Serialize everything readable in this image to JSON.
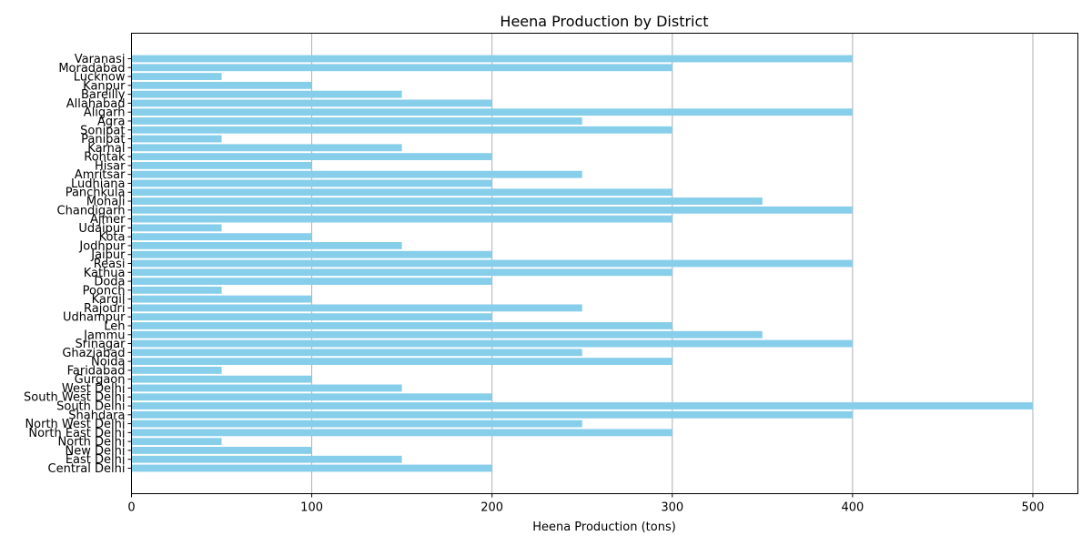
{
  "chart_data": {
    "type": "bar",
    "orientation": "horizontal",
    "title": "Heena Production by District",
    "xlabel": "Heena Production (tons)",
    "ylabel": "",
    "xlim": [
      0,
      525
    ],
    "xticks": [
      0,
      100,
      200,
      300,
      400,
      500
    ],
    "grid": "x",
    "bar_color": "#87ceeb",
    "categories": [
      "Central Delhi",
      "East Delhi",
      "New Delhi",
      "North Delhi",
      "North East Delhi",
      "North West Delhi",
      "Shahdara",
      "South Delhi",
      "South West Delhi",
      "West Delhi",
      "Gurgaon",
      "Faridabad",
      "Noida",
      "Ghaziabad",
      "Srinagar",
      "Jammu",
      "Leh",
      "Udhampur",
      "Rajouri",
      "Kargil",
      "Poonch",
      "Doda",
      "Kathua",
      "Reasi",
      "Jaipur",
      "Jodhpur",
      "Kota",
      "Udaipur",
      "Ajmer",
      "Chandigarh",
      "Mohali",
      "Panchkula",
      "Ludhiana",
      "Amritsar",
      "Hisar",
      "Rohtak",
      "Karnal",
      "Panipat",
      "Sonipat",
      "Agra",
      "Aligarh",
      "Allahabad",
      "Bareilly",
      "Kanpur",
      "Lucknow",
      "Moradabad",
      "Varanasi"
    ],
    "values": [
      200,
      150,
      100,
      50,
      300,
      250,
      400,
      500,
      200,
      150,
      100,
      50,
      300,
      250,
      400,
      350,
      300,
      200,
      250,
      100,
      50,
      200,
      300,
      400,
      200,
      150,
      100,
      50,
      300,
      400,
      350,
      300,
      200,
      250,
      100,
      200,
      150,
      50,
      300,
      250,
      400,
      200,
      150,
      100,
      50,
      300,
      400
    ]
  }
}
